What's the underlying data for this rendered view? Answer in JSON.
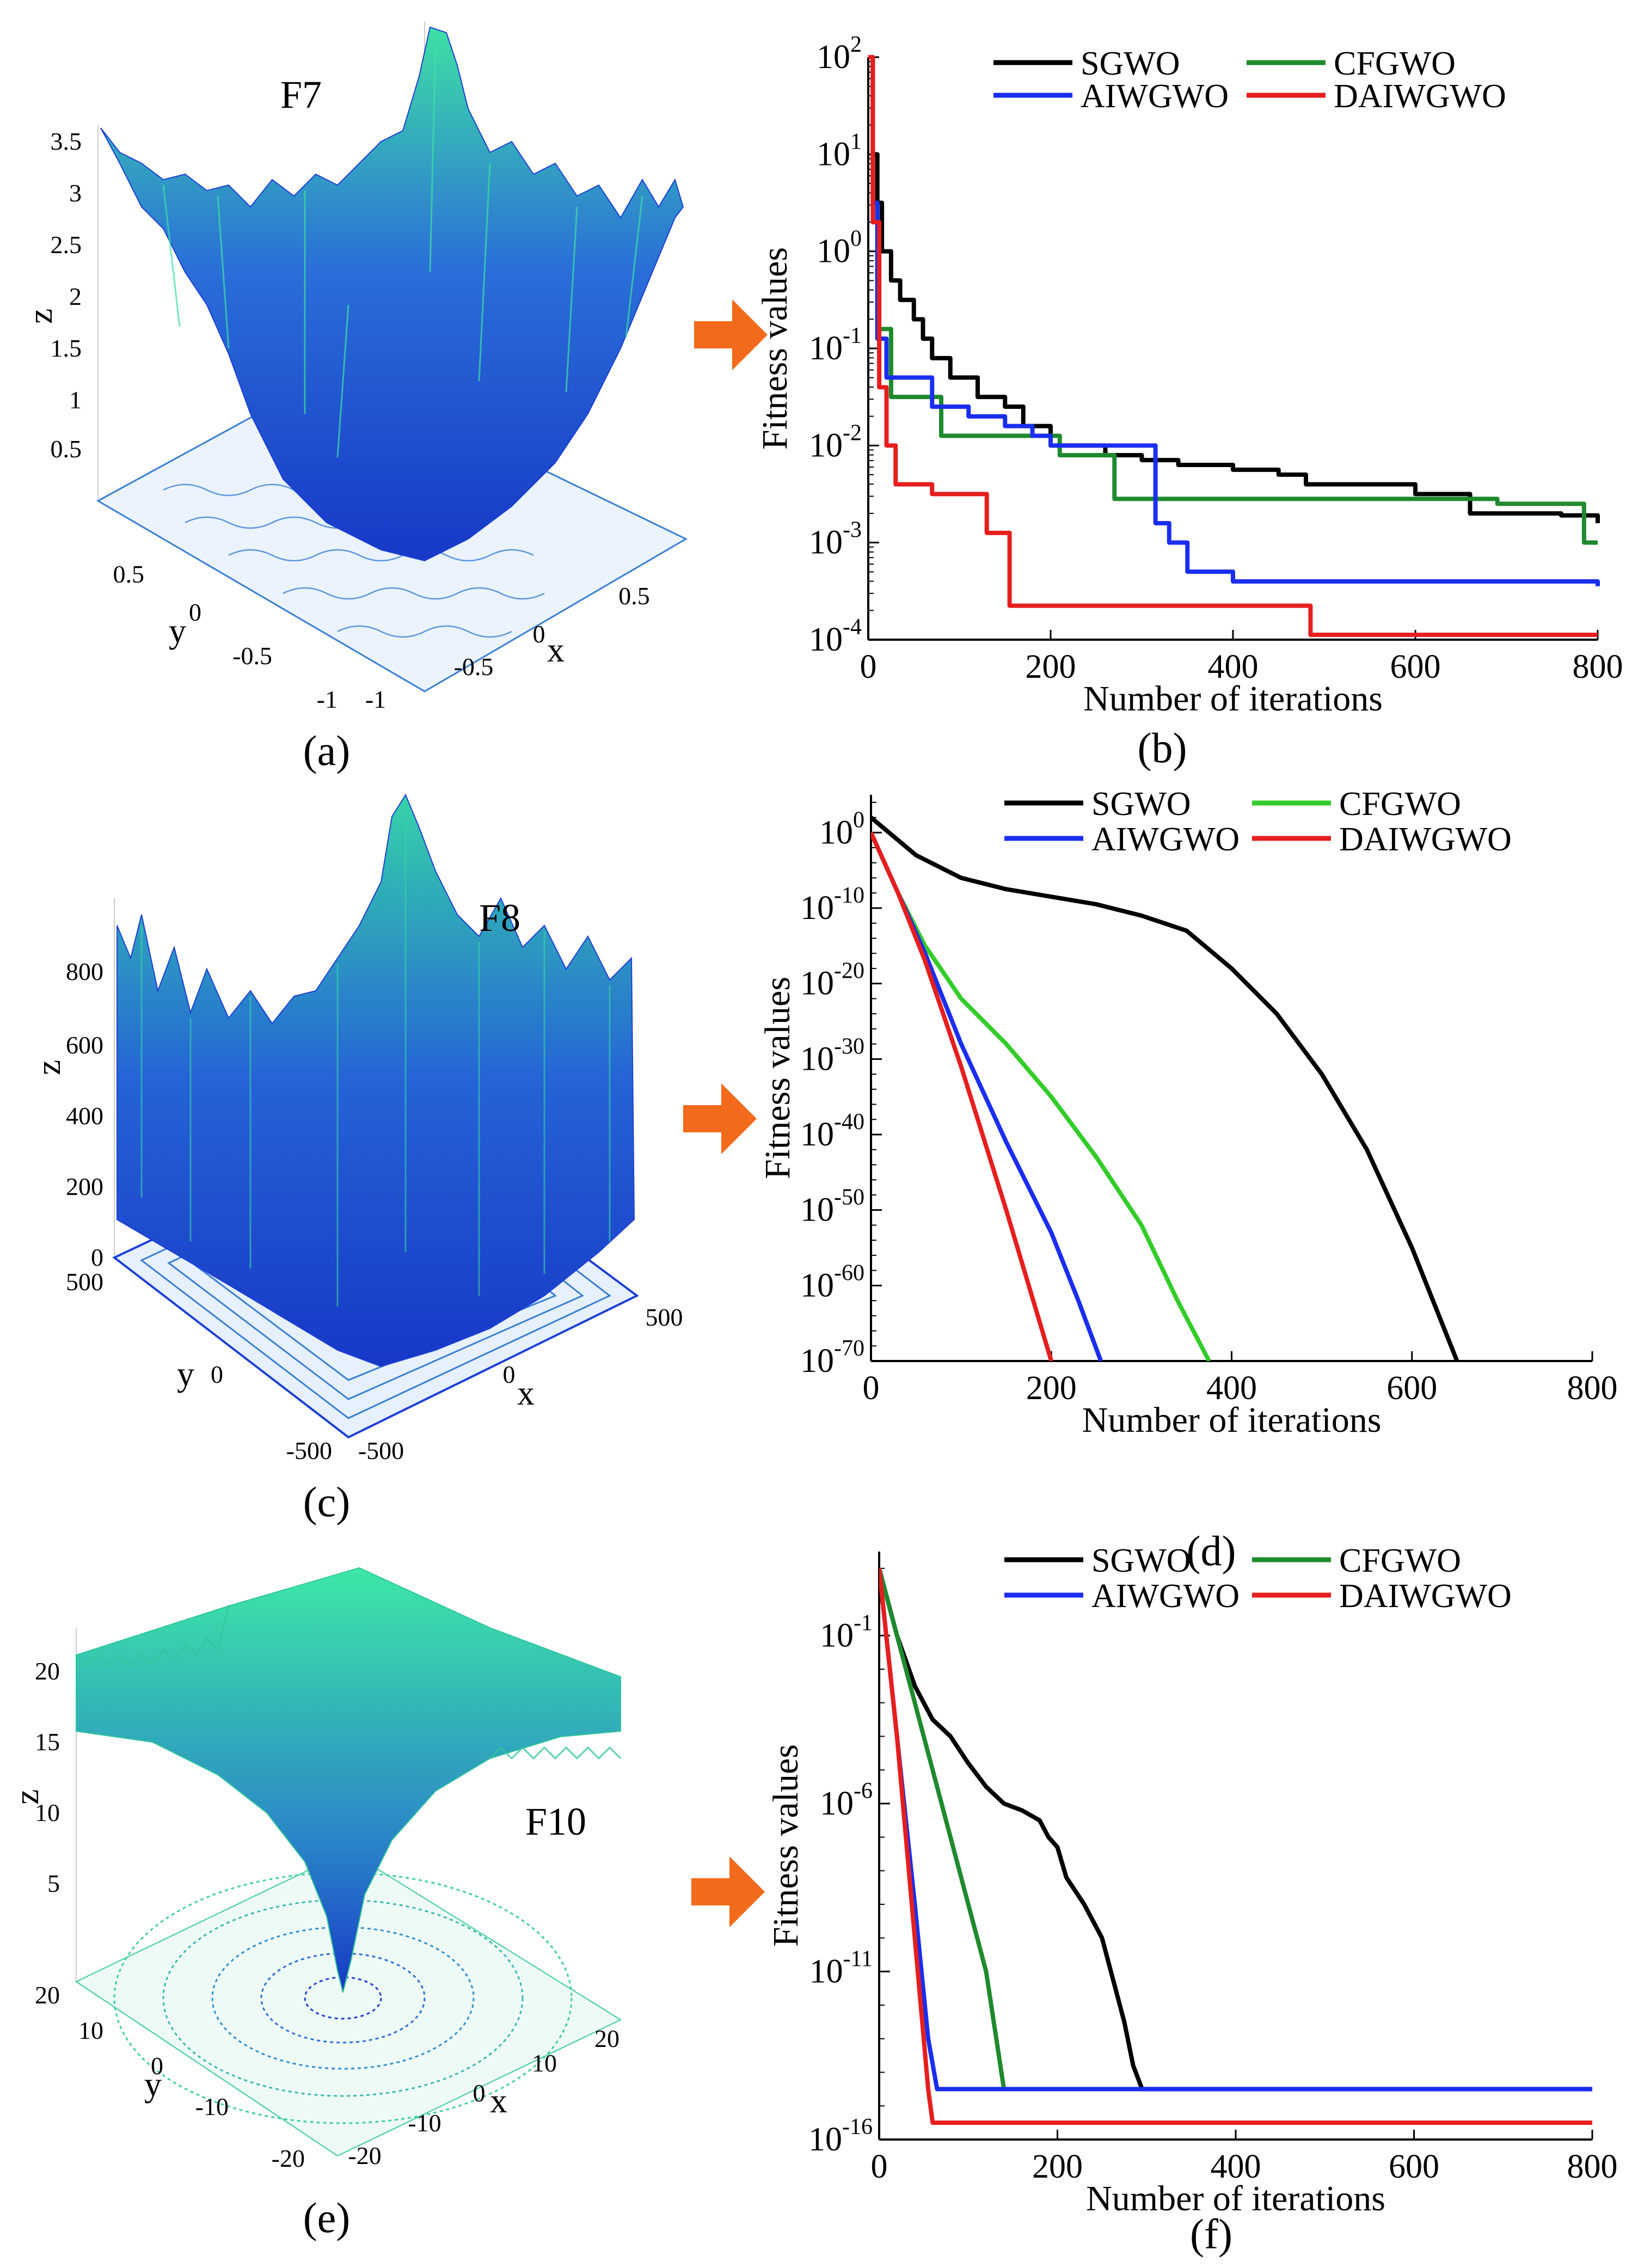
{
  "figure": {
    "panel_labels": [
      "(a)",
      "(b)",
      "(c)",
      "(d)",
      "(e)",
      "(f)"
    ],
    "arrow_color": "#f26a1b"
  },
  "surfaces": [
    {
      "function_label": "F7",
      "z_label": "z",
      "x_label": "x",
      "y_label": "y",
      "z_ticks": [
        "3.5",
        "3",
        "2.5",
        "2",
        "1.5",
        "1",
        "0.5"
      ],
      "x_ticks": [
        "-1",
        "-0.5",
        "0",
        "0.5"
      ],
      "y_ticks": [
        "-1",
        "-0.5",
        "0",
        "0.5"
      ],
      "colors": {
        "low": "#1c3fd6",
        "high": "#3ce6a6",
        "contour": "#3a7fd6"
      }
    },
    {
      "function_label": "F8",
      "z_label": "z",
      "x_label": "x",
      "y_label": "y",
      "z_ticks": [
        "800",
        "600",
        "400",
        "200",
        "0"
      ],
      "x_ticks": [
        "-500",
        "0",
        "500"
      ],
      "y_ticks": [
        "-500",
        "0",
        "500"
      ],
      "colors": {
        "low": "#1c3fd6",
        "high": "#3ce6a6",
        "contour": "#3a7fd6"
      }
    },
    {
      "function_label": "F10",
      "z_label": "z",
      "x_label": "x",
      "y_label": "y",
      "z_ticks": [
        "20",
        "15",
        "10",
        "5"
      ],
      "x_ticks": [
        "-20",
        "-10",
        "0",
        "10",
        "20"
      ],
      "y_ticks": [
        "-20",
        "-10",
        "0",
        "10",
        "20"
      ],
      "colors": {
        "low": "#1c3fd6",
        "high": "#3ce6a6",
        "contour": "#3ccfa0"
      }
    }
  ],
  "chart_data": [
    {
      "type": "line",
      "y_scale": "log",
      "xlabel": "Number of iterations",
      "ylabel": "Fitness values",
      "xlim": [
        0,
        800
      ],
      "x_ticks": [
        0,
        200,
        400,
        600,
        800
      ],
      "y_log_min": -4,
      "y_log_max": 2,
      "y_ticks": [
        {
          "base": "10",
          "exp": "-4",
          "value": -4
        },
        {
          "base": "10",
          "exp": "-3",
          "value": -3
        },
        {
          "base": "10",
          "exp": "-2",
          "value": -2
        },
        {
          "base": "10",
          "exp": "-1",
          "value": -1
        },
        {
          "base": "10",
          "exp": "0",
          "value": 0
        },
        {
          "base": "10",
          "exp": "1",
          "value": 1
        },
        {
          "base": "10",
          "exp": "2",
          "value": 2
        }
      ],
      "step_style": true,
      "series": [
        {
          "name": "SGWO",
          "color": "#000000",
          "points": [
            [
              0,
              2
            ],
            [
              5,
              1
            ],
            [
              10,
              0.5
            ],
            [
              15,
              0
            ],
            [
              25,
              -0.3
            ],
            [
              35,
              -0.5
            ],
            [
              50,
              -0.7
            ],
            [
              60,
              -0.9
            ],
            [
              70,
              -1.1
            ],
            [
              90,
              -1.3
            ],
            [
              120,
              -1.5
            ],
            [
              150,
              -1.6
            ],
            [
              170,
              -1.8
            ],
            [
              200,
              -2.0
            ],
            [
              260,
              -2.1
            ],
            [
              300,
              -2.15
            ],
            [
              340,
              -2.2
            ],
            [
              400,
              -2.25
            ],
            [
              450,
              -2.3
            ],
            [
              480,
              -2.4
            ],
            [
              600,
              -2.5
            ],
            [
              660,
              -2.7
            ],
            [
              760,
              -2.72
            ],
            [
              800,
              -2.8
            ]
          ]
        },
        {
          "name": "CFGWO",
          "color": "#1f8a2d",
          "points": [
            [
              0,
              2
            ],
            [
              5,
              0.5
            ],
            [
              10,
              -0.8
            ],
            [
              15,
              -0.8
            ],
            [
              25,
              -1.5
            ],
            [
              60,
              -1.5
            ],
            [
              80,
              -1.9
            ],
            [
              200,
              -1.9
            ],
            [
              210,
              -2.1
            ],
            [
              265,
              -2.1
            ],
            [
              270,
              -2.55
            ],
            [
              680,
              -2.55
            ],
            [
              690,
              -2.6
            ],
            [
              780,
              -2.6
            ],
            [
              785,
              -3.0
            ],
            [
              800,
              -3.0
            ]
          ]
        },
        {
          "name": "AIWGWO",
          "color": "#1a2ef0",
          "points": [
            [
              0,
              2
            ],
            [
              5,
              0.5
            ],
            [
              10,
              -0.9
            ],
            [
              20,
              -1.3
            ],
            [
              55,
              -1.3
            ],
            [
              70,
              -1.6
            ],
            [
              110,
              -1.7
            ],
            [
              150,
              -1.8
            ],
            [
              180,
              -1.9
            ],
            [
              200,
              -2.0
            ],
            [
              300,
              -2.0
            ],
            [
              315,
              -2.8
            ],
            [
              330,
              -3.0
            ],
            [
              350,
              -3.3
            ],
            [
              400,
              -3.4
            ],
            [
              600,
              -3.4
            ],
            [
              800,
              -3.45
            ]
          ]
        },
        {
          "name": "DAIWGWO",
          "color": "#e61e1e",
          "points": [
            [
              0,
              2
            ],
            [
              5,
              0.3
            ],
            [
              12,
              -1.4
            ],
            [
              20,
              -2.0
            ],
            [
              30,
              -2.4
            ],
            [
              60,
              -2.4
            ],
            [
              70,
              -2.5
            ],
            [
              120,
              -2.5
            ],
            [
              130,
              -2.9
            ],
            [
              150,
              -2.9
            ],
            [
              155,
              -3.65
            ],
            [
              480,
              -3.65
            ],
            [
              485,
              -3.95
            ],
            [
              800,
              -3.95
            ]
          ]
        }
      ],
      "legend_order": [
        "SGWO",
        "CFGWO",
        "AIWGWO",
        "DAIWGWO"
      ]
    },
    {
      "type": "line",
      "y_scale": "log",
      "xlabel": "Number of iterations",
      "ylabel": "Fitness values",
      "xlim": [
        0,
        800
      ],
      "x_ticks": [
        0,
        200,
        400,
        600,
        800
      ],
      "y_log_min": -70,
      "y_log_max": 5,
      "y_ticks": [
        {
          "base": "10",
          "exp": "-70",
          "value": -70
        },
        {
          "base": "10",
          "exp": "-60",
          "value": -60
        },
        {
          "base": "10",
          "exp": "-50",
          "value": -50
        },
        {
          "base": "10",
          "exp": "-40",
          "value": -40
        },
        {
          "base": "10",
          "exp": "-30",
          "value": -30
        },
        {
          "base": "10",
          "exp": "-20",
          "value": -20
        },
        {
          "base": "10",
          "exp": "-10",
          "value": -10
        },
        {
          "base": "10",
          "exp": "0",
          "value": 0
        }
      ],
      "step_style": false,
      "series": [
        {
          "name": "SGWO",
          "color": "#000000",
          "points": [
            [
              0,
              2
            ],
            [
              20,
              0
            ],
            [
              50,
              -3
            ],
            [
              100,
              -6
            ],
            [
              150,
              -7.5
            ],
            [
              200,
              -8.5
            ],
            [
              250,
              -9.5
            ],
            [
              300,
              -11
            ],
            [
              350,
              -13
            ],
            [
              400,
              -18
            ],
            [
              450,
              -24
            ],
            [
              500,
              -32
            ],
            [
              550,
              -42
            ],
            [
              600,
              -55
            ],
            [
              640,
              -67
            ],
            [
              650,
              -70
            ]
          ]
        },
        {
          "name": "CFGWO",
          "color": "#33cc2a",
          "points": [
            [
              0,
              0
            ],
            [
              30,
              -8
            ],
            [
              60,
              -15
            ],
            [
              100,
              -22
            ],
            [
              150,
              -28
            ],
            [
              200,
              -35
            ],
            [
              250,
              -43
            ],
            [
              300,
              -52
            ],
            [
              340,
              -62
            ],
            [
              375,
              -70
            ]
          ]
        },
        {
          "name": "AIWGWO",
          "color": "#1a2ef0",
          "points": [
            [
              0,
              0
            ],
            [
              30,
              -8
            ],
            [
              60,
              -16
            ],
            [
              100,
              -28
            ],
            [
              150,
              -41
            ],
            [
              200,
              -53
            ],
            [
              230,
              -62
            ],
            [
              255,
              -70
            ]
          ]
        },
        {
          "name": "DAIWGWO",
          "color": "#e61e1e",
          "points": [
            [
              0,
              0
            ],
            [
              30,
              -8
            ],
            [
              60,
              -17
            ],
            [
              100,
              -31
            ],
            [
              150,
              -50
            ],
            [
              200,
              -70
            ]
          ]
        }
      ],
      "legend_order": [
        "SGWO",
        "CFGWO",
        "AIWGWO",
        "DAIWGWO"
      ]
    },
    {
      "type": "line",
      "y_scale": "log",
      "xlabel": "Number of iterations",
      "ylabel": "Fitness values",
      "xlim": [
        0,
        800
      ],
      "x_ticks": [
        0,
        200,
        400,
        600,
        800
      ],
      "y_log_min": -16,
      "y_log_max": 1.5,
      "y_ticks": [
        {
          "base": "10",
          "exp": "-16",
          "value": -16
        },
        {
          "base": "10",
          "exp": "-11",
          "value": -11
        },
        {
          "base": "10",
          "exp": "-6",
          "value": -6
        },
        {
          "base": "10",
          "exp": "-1",
          "value": -1
        }
      ],
      "step_style": false,
      "series": [
        {
          "name": "SGWO",
          "color": "#000000",
          "points": [
            [
              0,
              1
            ],
            [
              20,
              -1
            ],
            [
              40,
              -2.5
            ],
            [
              60,
              -3.5
            ],
            [
              80,
              -4
            ],
            [
              100,
              -4.8
            ],
            [
              120,
              -5.5
            ],
            [
              140,
              -6
            ],
            [
              160,
              -6.2
            ],
            [
              180,
              -6.5
            ],
            [
              190,
              -7
            ],
            [
              200,
              -7.3
            ],
            [
              210,
              -8.2
            ],
            [
              230,
              -9
            ],
            [
              250,
              -10
            ],
            [
              265,
              -11.5
            ],
            [
              275,
              -12.5
            ],
            [
              285,
              -13.8
            ],
            [
              295,
              -14.5
            ],
            [
              800,
              -14.5
            ]
          ]
        },
        {
          "name": "CFGWO",
          "color": "#1f8a2d",
          "points": [
            [
              0,
              1
            ],
            [
              30,
              -2
            ],
            [
              60,
              -5
            ],
            [
              90,
              -8
            ],
            [
              120,
              -11
            ],
            [
              140,
              -14.5
            ]
          ]
        },
        {
          "name": "AIWGWO",
          "color": "#1a2ef0",
          "points": [
            [
              0,
              1
            ],
            [
              20,
              -4
            ],
            [
              40,
              -9
            ],
            [
              55,
              -13
            ],
            [
              65,
              -14.5
            ],
            [
              800,
              -14.5
            ]
          ]
        },
        {
          "name": "DAIWGWO",
          "color": "#e61e1e",
          "points": [
            [
              0,
              1
            ],
            [
              20,
              -4
            ],
            [
              40,
              -10
            ],
            [
              55,
              -14.5
            ],
            [
              60,
              -15.5
            ],
            [
              800,
              -15.5
            ]
          ]
        }
      ],
      "legend_order": [
        "SGWO",
        "CFGWO",
        "AIWGWO",
        "DAIWGWO"
      ]
    }
  ]
}
